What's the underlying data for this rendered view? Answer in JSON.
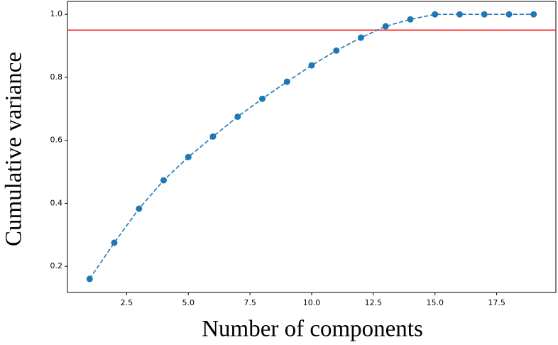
{
  "chart_data": {
    "type": "line",
    "xlabel": "Number of components",
    "ylabel": "Cumulative variance",
    "x": [
      1,
      2,
      3,
      4,
      5,
      6,
      7,
      8,
      9,
      10,
      11,
      12,
      13,
      14,
      15,
      16,
      17,
      18,
      19
    ],
    "series": [
      {
        "color": "#1f77b4",
        "linestyle": "dashed",
        "marker": "circle",
        "values": [
          0.16,
          0.275,
          0.383,
          0.473,
          0.547,
          0.612,
          0.675,
          0.732,
          0.786,
          0.838,
          0.885,
          0.926,
          0.962,
          0.984,
          1.0,
          1.0,
          1.0,
          1.0,
          1.0
        ]
      }
    ],
    "hline": {
      "value": 0.95,
      "color": "#ff0000"
    },
    "xlim": [
      0.1,
      19.9
    ],
    "ylim": [
      0.117,
      1.041
    ],
    "xticks": [
      {
        "value": 2.5,
        "label": "2.5"
      },
      {
        "value": 5,
        "label": "5.0"
      },
      {
        "value": 7.5,
        "label": "7.5"
      },
      {
        "value": 10,
        "label": "10.0"
      },
      {
        "value": 12.5,
        "label": "12.5"
      },
      {
        "value": 15,
        "label": "15.0"
      },
      {
        "value": 17.5,
        "label": "17.5"
      }
    ],
    "yticks": [
      0.2,
      0.4,
      0.6,
      0.8,
      {
        "value": 1,
        "label": "1.0"
      }
    ],
    "grid": false
  }
}
